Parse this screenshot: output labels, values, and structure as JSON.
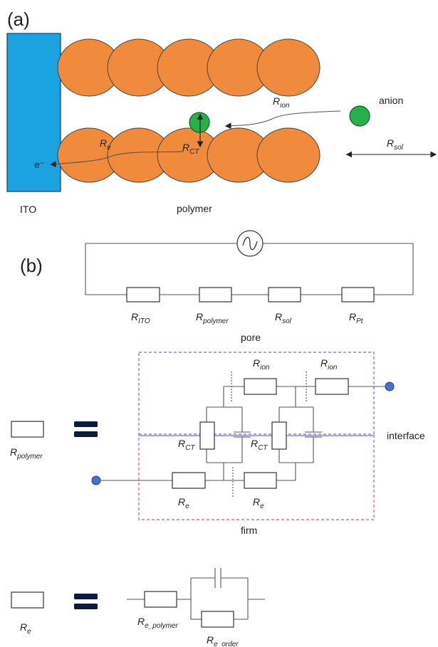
{
  "panel_a": {
    "label": "(a)",
    "electrode_label": "ITO",
    "polymer_label": "polymer",
    "anion_label": "anion",
    "electron_label": "e⁻",
    "r_ion": {
      "main": "R",
      "sub": "ion"
    },
    "r_e": {
      "main": "R",
      "sub": "e"
    },
    "r_ct": {
      "main": "R",
      "sub": "CT"
    },
    "r_sol": {
      "main": "R",
      "sub": "sol"
    },
    "colors": {
      "electrode": "#1aa3e0",
      "polymer": "#f08a3c",
      "anion": "#27b04a"
    }
  },
  "panel_b": {
    "label": "(b)",
    "source_icon": "ac-source-icon",
    "series": [
      {
        "main": "R",
        "sub": "ITO"
      },
      {
        "main": "R",
        "sub": "polymer"
      },
      {
        "main": "R",
        "sub": "sol"
      },
      {
        "main": "R",
        "sub": "Pt"
      }
    ],
    "pore_label": "pore",
    "interface_label": "interface",
    "firm_label": "firm",
    "polymer_eq": {
      "main": "R",
      "sub": "polymer"
    },
    "r_ion_top_1": {
      "main": "R",
      "sub": "ion"
    },
    "r_ion_top_2": {
      "main": "R",
      "sub": "ion"
    },
    "r_ct_1": {
      "main": "R",
      "sub": "CT"
    },
    "r_ct_2": {
      "main": "R",
      "sub": "CT"
    },
    "r_e_bot_1": {
      "main": "R",
      "sub": "e"
    },
    "r_e_bot_2": {
      "main": "R",
      "sub": "e"
    },
    "re_eq": {
      "main": "R",
      "sub": "e"
    },
    "re_polymer": {
      "main": "R",
      "sub": "e_polymer"
    },
    "re_order": {
      "main": "R",
      "sub": "e_order"
    },
    "colors": {
      "pore_box": "#5b7bd5",
      "firm_box": "#d64fb0",
      "node": "#4a6fd0"
    }
  }
}
